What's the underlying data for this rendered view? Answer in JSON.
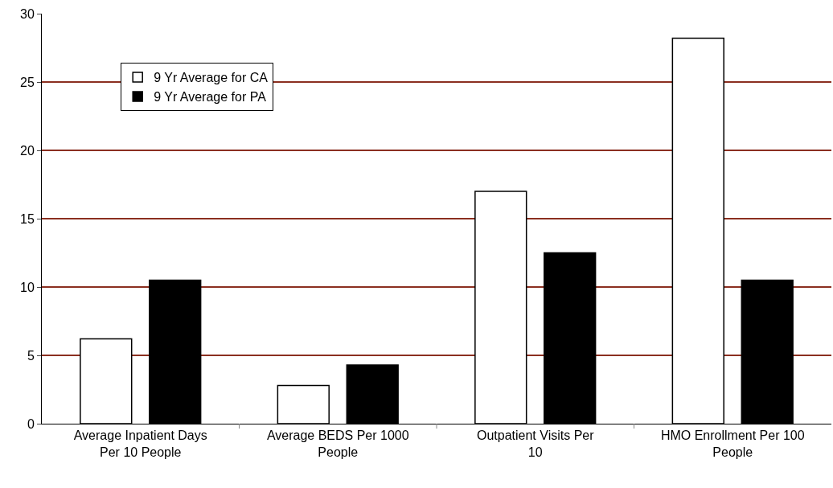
{
  "chart_data": {
    "type": "bar",
    "categories": [
      "Average Inpatient Days Per 10 People",
      "Average BEDS Per 1000 People",
      "Outpatient Visits Per 10",
      "HMO Enrollment Per 100 People"
    ],
    "series": [
      {
        "name": "9 Yr Average for CA",
        "color": "#ffffff",
        "values": [
          6.2,
          2.8,
          17.0,
          28.2
        ]
      },
      {
        "name": "9 Yr Average for PA",
        "color": "#000000",
        "values": [
          10.5,
          4.3,
          12.5,
          10.5
        ]
      }
    ],
    "ylim": [
      0,
      30
    ],
    "yticks": [
      0,
      5,
      10,
      15,
      20,
      25,
      30
    ],
    "grid": "y",
    "legend": "top left"
  }
}
